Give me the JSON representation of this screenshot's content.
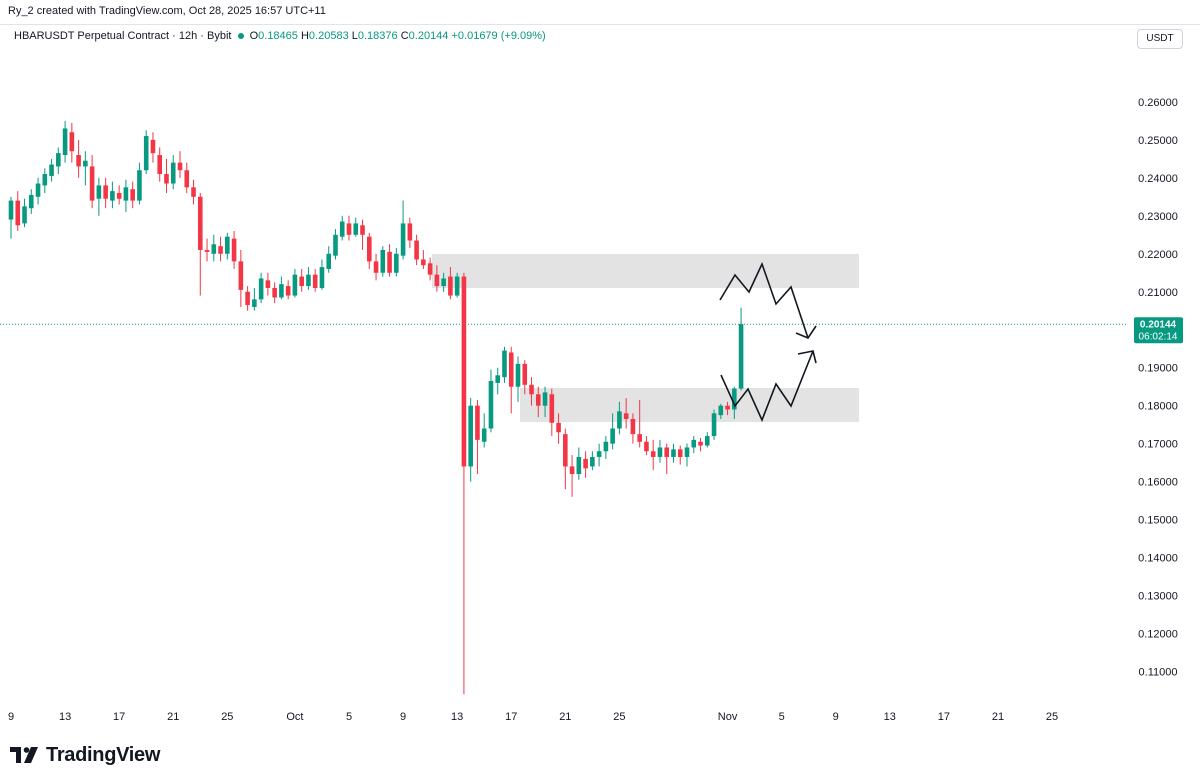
{
  "header": {
    "credit": "Ry_2 created with TradingView.com, Oct 28, 2025 16:57 UTC+11"
  },
  "legend": {
    "symbol": "HBARUSDT Perpetual Contract · 12h · Bybit",
    "open_label": "O",
    "open": "0.18465",
    "high_label": "H",
    "high": "0.20583",
    "low_label": "L",
    "low": "0.18376",
    "close_label": "C",
    "close": "0.20144",
    "change": "+0.01679 (+9.09%)"
  },
  "currency_button": "USDT",
  "price_tag": {
    "price": "0.20144",
    "countdown": "06:02:14"
  },
  "brand": {
    "name": "TradingView"
  },
  "colors": {
    "up": "#089981",
    "down": "#f23645",
    "zone": "#e0e0e0",
    "text": "#131722"
  },
  "chart_data": {
    "type": "candlestick",
    "title": "HBARUSDT Perpetual Contract · 12h · Bybit",
    "ylim": [
      0.1025,
      0.2705
    ],
    "xlim": [
      0,
      200
    ],
    "y_ticks": [
      0.26,
      0.25,
      0.24,
      0.23,
      0.22,
      0.21,
      0.2,
      0.19,
      0.18,
      0.17,
      0.16,
      0.15,
      0.14,
      0.13,
      0.12,
      0.11
    ],
    "y_tick_labels": [
      "0.26000",
      "0.25000",
      "0.24000",
      "0.23000",
      "0.22000",
      "0.21000",
      "0.20000",
      "0.19000",
      "0.18000",
      "0.17000",
      "0.16000",
      "0.15000",
      "0.14000",
      "0.13000",
      "0.12000",
      "0.11000"
    ],
    "x_ticks": [
      {
        "label": "9",
        "i": 0
      },
      {
        "label": "13",
        "i": 8
      },
      {
        "label": "17",
        "i": 16
      },
      {
        "label": "21",
        "i": 24
      },
      {
        "label": "25",
        "i": 32
      },
      {
        "label": "Oct",
        "i": 42
      },
      {
        "label": "5",
        "i": 50
      },
      {
        "label": "9",
        "i": 58
      },
      {
        "label": "13",
        "i": 66
      },
      {
        "label": "17",
        "i": 74
      },
      {
        "label": "21",
        "i": 82
      },
      {
        "label": "25",
        "i": 90
      },
      {
        "label": "Nov",
        "i": 106
      },
      {
        "label": "5",
        "i": 114
      },
      {
        "label": "9",
        "i": 122
      },
      {
        "label": "13",
        "i": 130
      },
      {
        "label": "17",
        "i": 138
      },
      {
        "label": "21",
        "i": 146
      },
      {
        "label": "25",
        "i": 154
      }
    ],
    "last_price": 0.20144,
    "candles": [
      [
        0.229,
        0.234,
        0.224,
        0.235
      ],
      [
        0.234,
        0.2275,
        0.226,
        0.2365
      ],
      [
        0.228,
        0.2325,
        0.227,
        0.2345
      ],
      [
        0.232,
        0.2355,
        0.2305,
        0.237
      ],
      [
        0.235,
        0.2385,
        0.233,
        0.24
      ],
      [
        0.238,
        0.241,
        0.236,
        0.2425
      ],
      [
        0.2405,
        0.2435,
        0.239,
        0.245
      ],
      [
        0.243,
        0.2465,
        0.241,
        0.248
      ],
      [
        0.246,
        0.253,
        0.244,
        0.255
      ],
      [
        0.252,
        0.247,
        0.244,
        0.2545
      ],
      [
        0.246,
        0.243,
        0.24,
        0.25
      ],
      [
        0.243,
        0.2445,
        0.238,
        0.247
      ],
      [
        0.243,
        0.234,
        0.232,
        0.246
      ],
      [
        0.2345,
        0.238,
        0.23,
        0.24
      ],
      [
        0.238,
        0.2345,
        0.232,
        0.24
      ],
      [
        0.234,
        0.2365,
        0.232,
        0.239
      ],
      [
        0.236,
        0.2345,
        0.233,
        0.238
      ],
      [
        0.234,
        0.2375,
        0.231,
        0.2395
      ],
      [
        0.237,
        0.234,
        0.232,
        0.239
      ],
      [
        0.234,
        0.242,
        0.233,
        0.244
      ],
      [
        0.242,
        0.251,
        0.241,
        0.2525
      ],
      [
        0.25,
        0.2465,
        0.244,
        0.252
      ],
      [
        0.246,
        0.241,
        0.239,
        0.248
      ],
      [
        0.241,
        0.2385,
        0.236,
        0.245
      ],
      [
        0.2385,
        0.244,
        0.237,
        0.246
      ],
      [
        0.244,
        0.242,
        0.24,
        0.247
      ],
      [
        0.242,
        0.2375,
        0.236,
        0.244
      ],
      [
        0.2375,
        0.235,
        0.233,
        0.2395
      ],
      [
        0.235,
        0.221,
        0.209,
        0.236
      ],
      [
        0.221,
        0.2205,
        0.218,
        0.224
      ],
      [
        0.22,
        0.2225,
        0.218,
        0.225
      ],
      [
        0.222,
        0.22,
        0.218,
        0.2245
      ],
      [
        0.22,
        0.2245,
        0.2185,
        0.2255
      ],
      [
        0.224,
        0.218,
        0.216,
        0.226
      ],
      [
        0.218,
        0.2105,
        0.206,
        0.221
      ],
      [
        0.21,
        0.2065,
        0.205,
        0.2115
      ],
      [
        0.206,
        0.208,
        0.205,
        0.211
      ],
      [
        0.208,
        0.2135,
        0.207,
        0.215
      ],
      [
        0.213,
        0.211,
        0.209,
        0.215
      ],
      [
        0.211,
        0.2085,
        0.207,
        0.2125
      ],
      [
        0.2085,
        0.212,
        0.208,
        0.214
      ],
      [
        0.2115,
        0.209,
        0.208,
        0.213
      ],
      [
        0.209,
        0.2145,
        0.2085,
        0.216
      ],
      [
        0.214,
        0.2115,
        0.21,
        0.216
      ],
      [
        0.2115,
        0.2145,
        0.2105,
        0.2165
      ],
      [
        0.2145,
        0.211,
        0.21,
        0.216
      ],
      [
        0.211,
        0.2165,
        0.2105,
        0.2185
      ],
      [
        0.216,
        0.22,
        0.215,
        0.222
      ],
      [
        0.2195,
        0.225,
        0.2185,
        0.2265
      ],
      [
        0.2245,
        0.2285,
        0.2235,
        0.23
      ],
      [
        0.228,
        0.225,
        0.2235,
        0.23
      ],
      [
        0.225,
        0.228,
        0.2245,
        0.2295
      ],
      [
        0.2275,
        0.225,
        0.221,
        0.229
      ],
      [
        0.2245,
        0.218,
        0.216,
        0.2255
      ],
      [
        0.218,
        0.215,
        0.213,
        0.22
      ],
      [
        0.215,
        0.221,
        0.214,
        0.222
      ],
      [
        0.2205,
        0.215,
        0.214,
        0.2225
      ],
      [
        0.215,
        0.22,
        0.214,
        0.2215
      ],
      [
        0.2195,
        0.228,
        0.2185,
        0.234
      ],
      [
        0.228,
        0.2235,
        0.2215,
        0.2295
      ],
      [
        0.2235,
        0.2185,
        0.217,
        0.225
      ],
      [
        0.2185,
        0.217,
        0.216,
        0.221
      ],
      [
        0.2175,
        0.2145,
        0.213,
        0.219
      ],
      [
        0.2145,
        0.2115,
        0.21,
        0.217
      ],
      [
        0.2115,
        0.2135,
        0.21,
        0.215
      ],
      [
        0.214,
        0.209,
        0.208,
        0.2165
      ],
      [
        0.209,
        0.214,
        0.2085,
        0.215
      ],
      [
        0.214,
        0.164,
        0.104,
        0.215
      ],
      [
        0.164,
        0.18,
        0.16,
        0.182
      ],
      [
        0.18,
        0.171,
        0.162,
        0.1815
      ],
      [
        0.1705,
        0.174,
        0.169,
        0.178
      ],
      [
        0.174,
        0.1865,
        0.173,
        0.1895
      ],
      [
        0.186,
        0.188,
        0.183,
        0.19
      ],
      [
        0.1875,
        0.1945,
        0.186,
        0.1955
      ],
      [
        0.194,
        0.185,
        0.178,
        0.1955
      ],
      [
        0.185,
        0.191,
        0.181,
        0.193
      ],
      [
        0.191,
        0.1855,
        0.183,
        0.192
      ],
      [
        0.1855,
        0.183,
        0.18,
        0.1875
      ],
      [
        0.183,
        0.18,
        0.177,
        0.185
      ],
      [
        0.18,
        0.1835,
        0.177,
        0.185
      ],
      [
        0.183,
        0.1755,
        0.172,
        0.1845
      ],
      [
        0.1755,
        0.173,
        0.17,
        0.178
      ],
      [
        0.1725,
        0.164,
        0.158,
        0.174
      ],
      [
        0.164,
        0.162,
        0.156,
        0.167
      ],
      [
        0.162,
        0.1665,
        0.1605,
        0.169
      ],
      [
        0.166,
        0.1635,
        0.161,
        0.168
      ],
      [
        0.164,
        0.1665,
        0.163,
        0.168
      ],
      [
        0.1665,
        0.168,
        0.164,
        0.17
      ],
      [
        0.168,
        0.1705,
        0.166,
        0.172
      ],
      [
        0.17,
        0.174,
        0.1685,
        0.178
      ],
      [
        0.174,
        0.1785,
        0.1725,
        0.181
      ],
      [
        0.178,
        0.1765,
        0.174,
        0.182
      ],
      [
        0.1765,
        0.1725,
        0.17,
        0.178
      ],
      [
        0.1725,
        0.1705,
        0.169,
        0.1815
      ],
      [
        0.1705,
        0.168,
        0.167,
        0.172
      ],
      [
        0.168,
        0.1665,
        0.163,
        0.171
      ],
      [
        0.1665,
        0.169,
        0.165,
        0.171
      ],
      [
        0.169,
        0.1665,
        0.162,
        0.17
      ],
      [
        0.1665,
        0.1685,
        0.165,
        0.17
      ],
      [
        0.1685,
        0.1665,
        0.1645,
        0.1695
      ],
      [
        0.1665,
        0.169,
        0.164,
        0.17
      ],
      [
        0.169,
        0.171,
        0.1675,
        0.172
      ],
      [
        0.1705,
        0.1695,
        0.168,
        0.1715
      ],
      [
        0.1695,
        0.172,
        0.169,
        0.173
      ],
      [
        0.172,
        0.178,
        0.171,
        0.179
      ],
      [
        0.1775,
        0.18,
        0.1765,
        0.1805
      ],
      [
        0.18,
        0.179,
        0.1775,
        0.181
      ],
      [
        0.179,
        0.1845,
        0.1765,
        0.185
      ],
      [
        0.1845,
        0.2015,
        0.184,
        0.2058
      ]
    ]
  }
}
